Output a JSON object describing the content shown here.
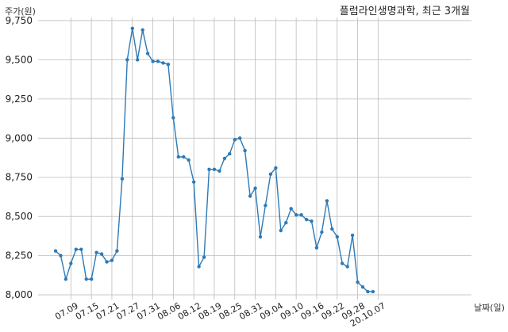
{
  "chart_data": {
    "type": "line",
    "title": "플럼라인생명과학, 최근 3개월",
    "ylabel": "주가(원)",
    "xlabel": "날짜(일)",
    "ylim": [
      7970,
      9770
    ],
    "yticks": [
      8000,
      8250,
      8500,
      8750,
      9000,
      9250,
      9500,
      9750
    ],
    "ytick_labels": [
      "8,000",
      "8,250",
      "8,500",
      "8,750",
      "9,000",
      "9,250",
      "9,500",
      "9,750"
    ],
    "xticks": [
      {
        "i": 3,
        "label": "07.09"
      },
      {
        "i": 7,
        "label": "07.15"
      },
      {
        "i": 11,
        "label": "07.21"
      },
      {
        "i": 15,
        "label": "07.27"
      },
      {
        "i": 19,
        "label": "07.31"
      },
      {
        "i": 23,
        "label": "08.06"
      },
      {
        "i": 27,
        "label": "08.12"
      },
      {
        "i": 31,
        "label": "08.19"
      },
      {
        "i": 35,
        "label": "08.25"
      },
      {
        "i": 39,
        "label": "08.31"
      },
      {
        "i": 43,
        "label": "09.04"
      },
      {
        "i": 47,
        "label": "09.10"
      },
      {
        "i": 51,
        "label": "09.16"
      },
      {
        "i": 55,
        "label": "09.22"
      },
      {
        "i": 59,
        "label": "09.28"
      },
      {
        "i": 63,
        "label": "20.10.07"
      }
    ],
    "grid": true,
    "color": "#2e7ab6",
    "series": [
      {
        "values": [
          8280,
          8250,
          8100,
          8200,
          8290,
          8290,
          8100,
          8100,
          8270,
          8260,
          8210,
          8220,
          8280,
          8740,
          9500,
          9700,
          9500,
          9690,
          9540,
          9490,
          9490,
          9480,
          9470,
          9130,
          8880,
          8880,
          8860,
          8720,
          8180,
          8240,
          8800,
          8800,
          8790,
          8870,
          8900,
          8990,
          9000,
          8920,
          8630,
          8680,
          8370,
          8570,
          8770,
          8810,
          8410,
          8460,
          8550,
          8510,
          8510,
          8480,
          8470,
          8300,
          8400,
          8600,
          8420,
          8370,
          8200,
          8180,
          8380,
          8080,
          8050,
          8020,
          8020
        ]
      }
    ]
  }
}
